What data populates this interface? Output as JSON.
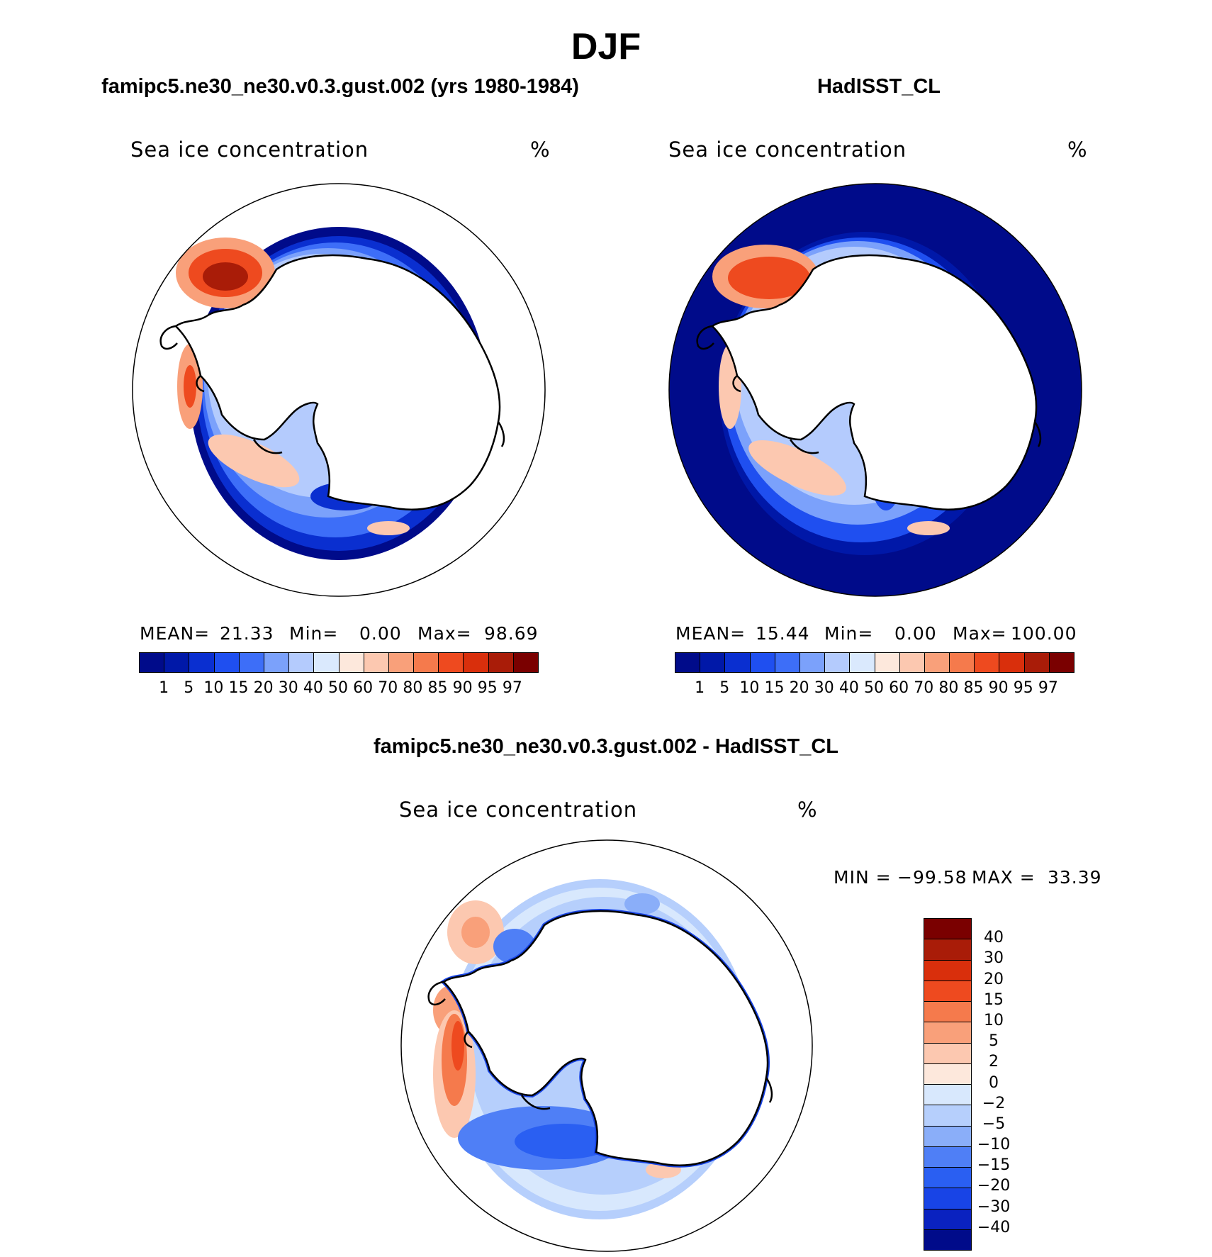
{
  "figure": {
    "title": "DJF"
  },
  "colors": {
    "ocean_dark": "#000b8a",
    "coast": "#000000",
    "abs_palette": [
      "#000b8a",
      "#0018a8",
      "#0a2fd0",
      "#1f4ff0",
      "#3d6ef8",
      "#7ba1fb",
      "#b4cbfd",
      "#dae9fd",
      "#fde8dc",
      "#fcc8b0",
      "#f9a07a",
      "#f57a4c",
      "#ee4a1f",
      "#d92f0c",
      "#a91c08",
      "#7a0000"
    ],
    "diff_palette": [
      "#000b8a",
      "#0a22c0",
      "#1844e6",
      "#2a5ff2",
      "#4f7ff6",
      "#8aaef9",
      "#b6cffc",
      "#d8e8fd",
      "#fde8dc",
      "#fcc8b0",
      "#f9a07a",
      "#f57a4c",
      "#ee4a1f",
      "#d92f0c",
      "#a91c08",
      "#7a0000"
    ]
  },
  "panels": {
    "model": {
      "header": "famipc5.ne30_ne30.v0.3.gust.002 (yrs 1980-1984)",
      "variable": "Sea ice concentration",
      "units": "%",
      "stats": {
        "mean_label": "MEAN=",
        "mean": "21.33",
        "min_label": "Min=",
        "min": "0.00",
        "max_label": "Max=",
        "max": "98.69"
      },
      "colorbar_labels": [
        "1",
        "5",
        "10",
        "15",
        "20",
        "30",
        "40",
        "50",
        "60",
        "70",
        "80",
        "85",
        "90",
        "95",
        "97"
      ]
    },
    "obs": {
      "header": "HadISST_CL",
      "variable": "Sea ice concentration",
      "units": "%",
      "stats": {
        "mean_label": "MEAN=",
        "mean": "15.44",
        "min_label": "Min=",
        "min": "0.00",
        "max_label": "Max=",
        "max": "100.00"
      },
      "colorbar_labels": [
        "1",
        "5",
        "10",
        "15",
        "20",
        "30",
        "40",
        "50",
        "60",
        "70",
        "80",
        "85",
        "90",
        "95",
        "97"
      ]
    },
    "diff": {
      "header": "famipc5.ne30_ne30.v0.3.gust.002 - HadISST_CL",
      "variable": "Sea ice concentration",
      "units": "%",
      "stats": {
        "min_label": "MIN =",
        "min": "−99.58",
        "max_label": "MAX =",
        "max": "33.39"
      },
      "colorbar_labels": [
        "40",
        "30",
        "20",
        "15",
        "10",
        "5",
        "2",
        "0",
        "−2",
        "−5",
        "−10",
        "−15",
        "−20",
        "−30",
        "−40"
      ]
    }
  }
}
